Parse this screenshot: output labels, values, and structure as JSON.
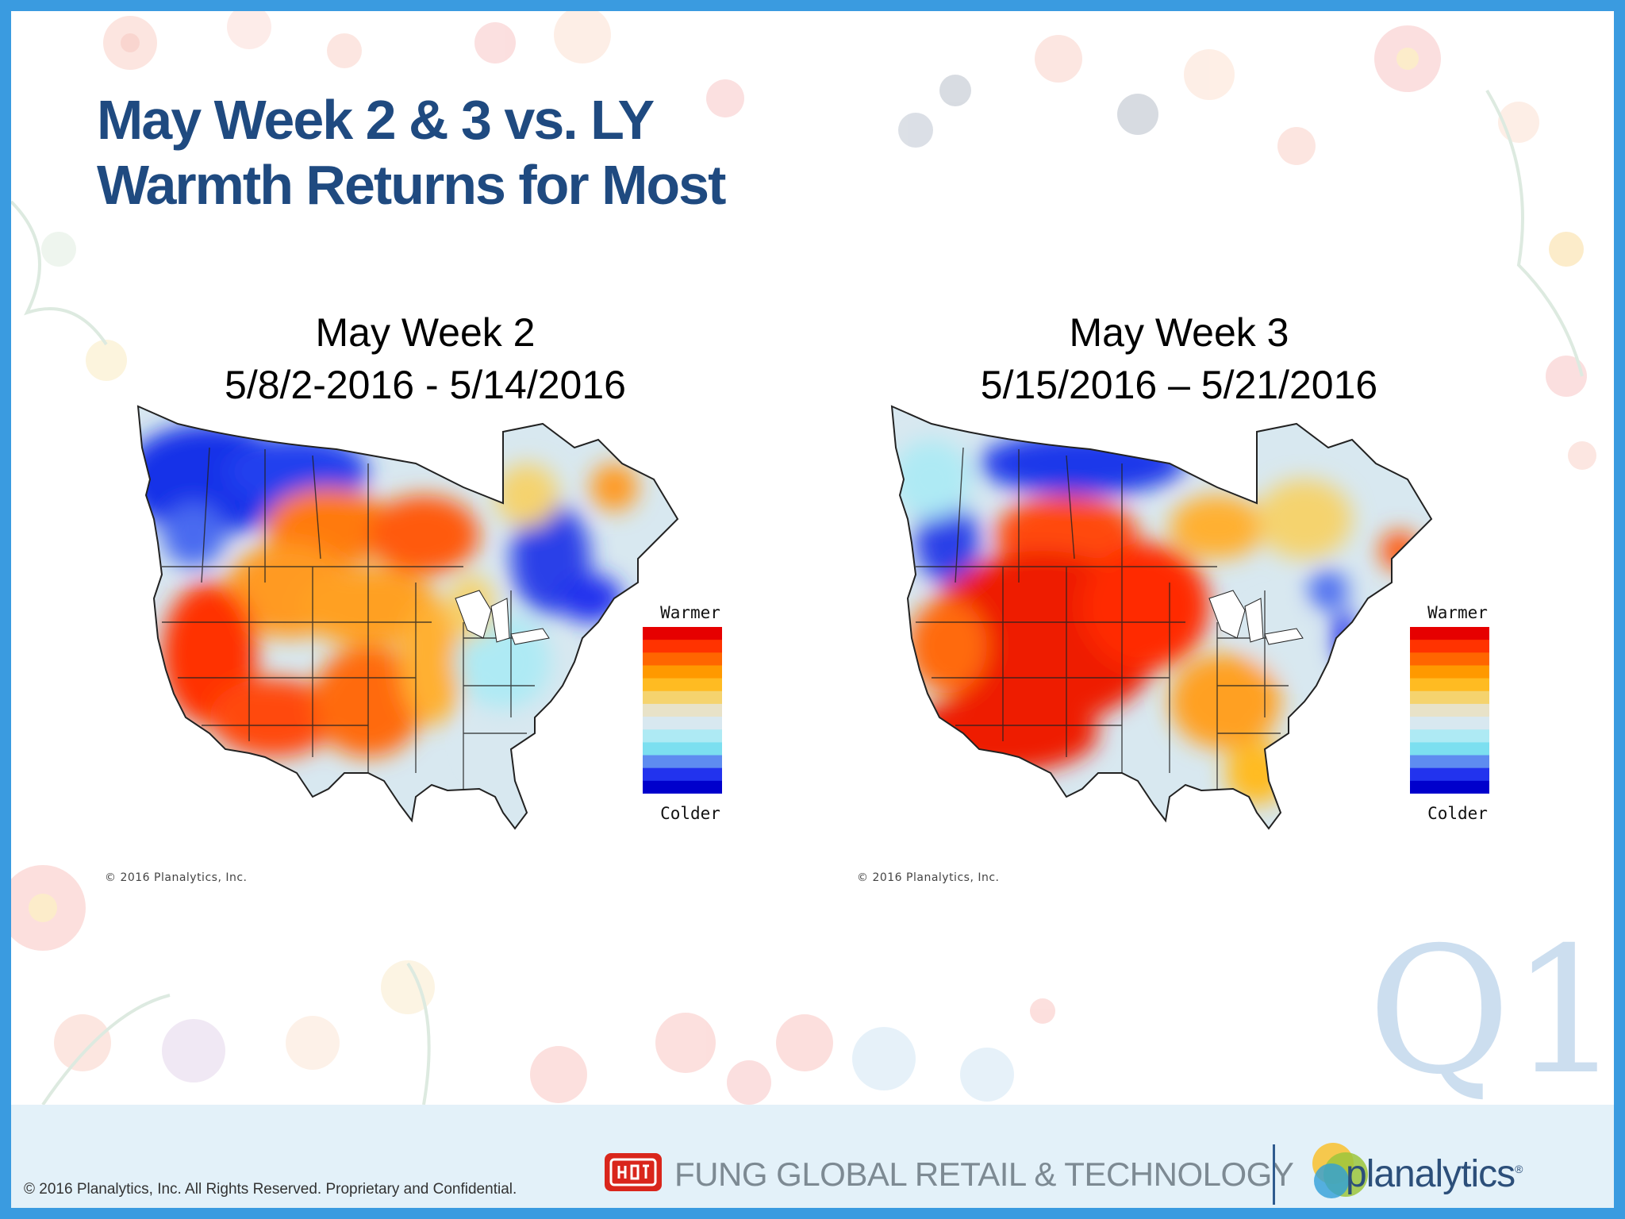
{
  "slide": {
    "title_line1": "May Week 2 & 3 vs. LY",
    "title_line2": "Warmth Returns for Most",
    "watermark": "Q1"
  },
  "maps": [
    {
      "heading_line1": "May Week 2",
      "heading_line2": "5/8/2-2016 - 5/14/2016",
      "legend_top": "Warmer",
      "legend_bottom": "Colder",
      "copyright": "© 2016 Planalytics, Inc."
    },
    {
      "heading_line1": "May Week 3",
      "heading_line2": "5/15/2016 – 5/21/2016",
      "legend_top": "Warmer",
      "legend_bottom": "Colder",
      "copyright": "© 2016 Planalytics, Inc."
    }
  ],
  "legend_colors": [
    "#e60000",
    "#ff3300",
    "#ff6600",
    "#ff9900",
    "#ffbb22",
    "#f5d36e",
    "#e8e2c8",
    "#d8e8f0",
    "#aeeaf4",
    "#7cdff0",
    "#5e8cf0",
    "#2233ee",
    "#0000cc"
  ],
  "footer": {
    "copyright": "© 2016 Planalytics, Inc. All Rights Reserved. Proprietary and Confidential.",
    "fung_name": "FUNG GLOBAL RETAIL & TECHNOLOGY",
    "planalytics_name": "planalytics",
    "trademark": "®"
  }
}
